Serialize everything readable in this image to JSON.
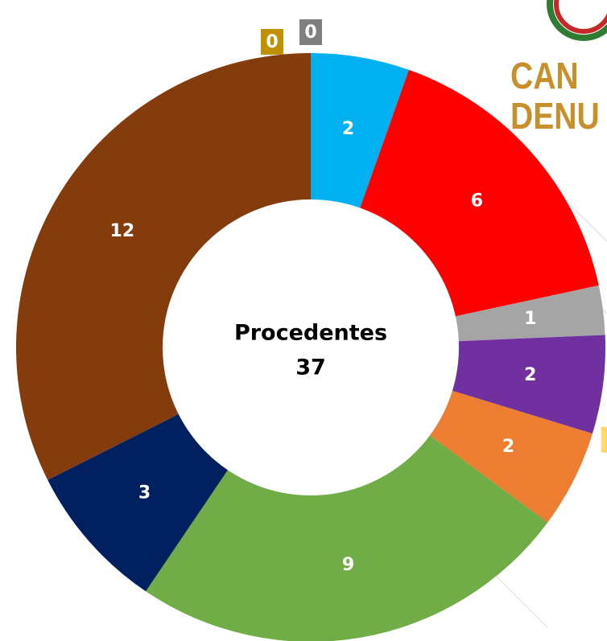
{
  "chart_data": {
    "type": "donut",
    "values": [
      2,
      6,
      1,
      2,
      0,
      2,
      9,
      3,
      12,
      0,
      0
    ],
    "colors": [
      "#00b0f0",
      "#ff0000",
      "#a5a5a5",
      "#7030a0",
      "#ffd966",
      "#ed7d31",
      "#70ad47",
      "#002060",
      "#843c0c",
      "#bf9000",
      "#7f7f7f"
    ],
    "center_label": "Procedentes",
    "center_value": 37
  },
  "logo": {
    "lines": [
      "CAN",
      "DENU"
    ]
  }
}
